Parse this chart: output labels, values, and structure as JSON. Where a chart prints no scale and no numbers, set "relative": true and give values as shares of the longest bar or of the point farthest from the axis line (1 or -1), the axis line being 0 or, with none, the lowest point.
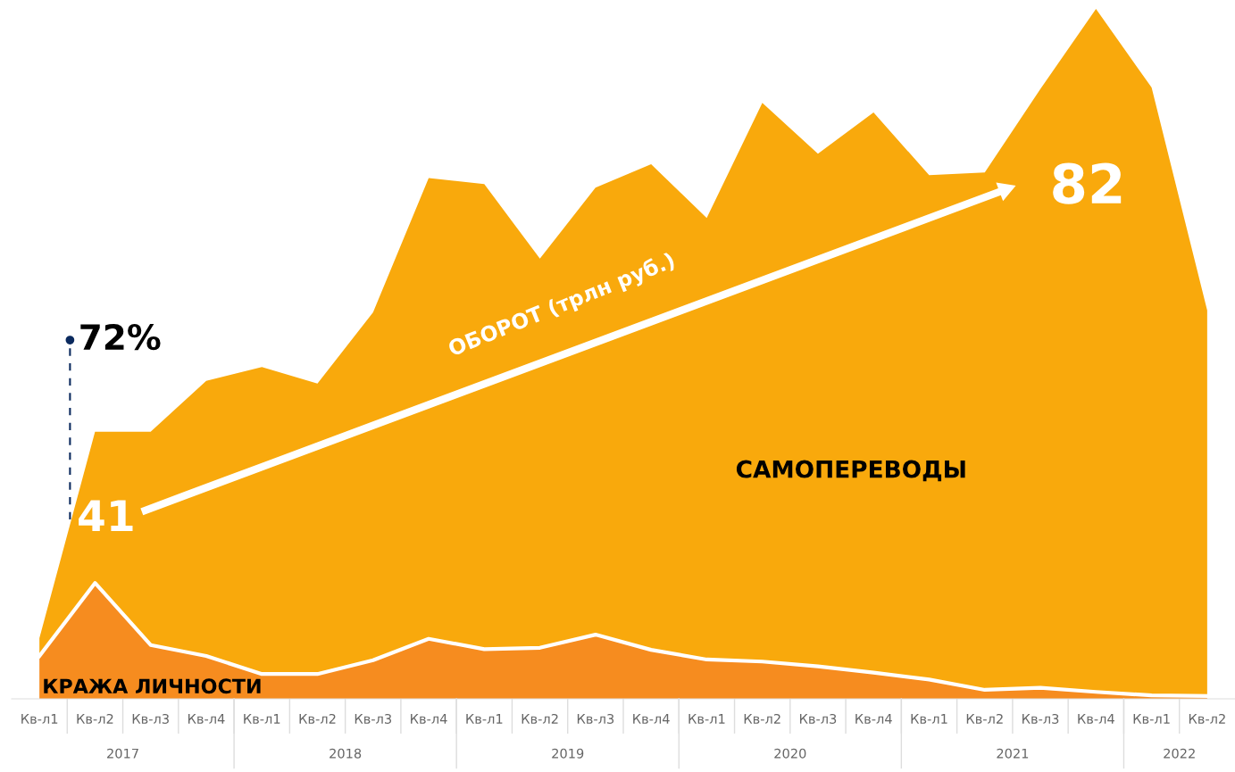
{
  "chart_data": {
    "type": "area",
    "stacked": true,
    "relative": true,
    "grid": false,
    "legend": false,
    "tick_labels": "x",
    "categories": [
      "Кв-л1",
      "Кв-л2",
      "Кв-л3",
      "Кв-л4",
      "Кв-л1",
      "Кв-л2",
      "Кв-л3",
      "Кв-л4",
      "Кв-л1",
      "Кв-л2",
      "Кв-л3",
      "Кв-л4",
      "Кв-л1",
      "Кв-л2",
      "Кв-л3",
      "Кв-л4",
      "Кв-л1",
      "Кв-л2",
      "Кв-л3",
      "Кв-л4",
      "Кв-л1",
      "Кв-л2"
    ],
    "series": [
      {
        "name": "КРАЖА ЛИЧНОСТИ",
        "color": "#f68c1f",
        "values": [
          0.062,
          0.168,
          0.078,
          0.062,
          0.036,
          0.036,
          0.056,
          0.087,
          0.072,
          0.074,
          0.093,
          0.071,
          0.057,
          0.054,
          0.047,
          0.038,
          0.028,
          0.013,
          0.016,
          0.01,
          0.005,
          0.004
        ]
      },
      {
        "name": "САМОПЕРЕВОДЫ",
        "color": "#f9a90c",
        "values": [
          0.026,
          0.219,
          0.309,
          0.399,
          0.445,
          0.421,
          0.504,
          0.668,
          0.674,
          0.564,
          0.648,
          0.704,
          0.64,
          0.81,
          0.743,
          0.812,
          0.731,
          0.75,
          0.868,
          0.99,
          0.881,
          0.559
        ]
      }
    ],
    "annotations": [
      "2017",
      "2018",
      "2019",
      "2020",
      "2021",
      "2022",
      "72%",
      "41",
      "82",
      "ОБОРОТ (трлн руб.)"
    ]
  }
}
